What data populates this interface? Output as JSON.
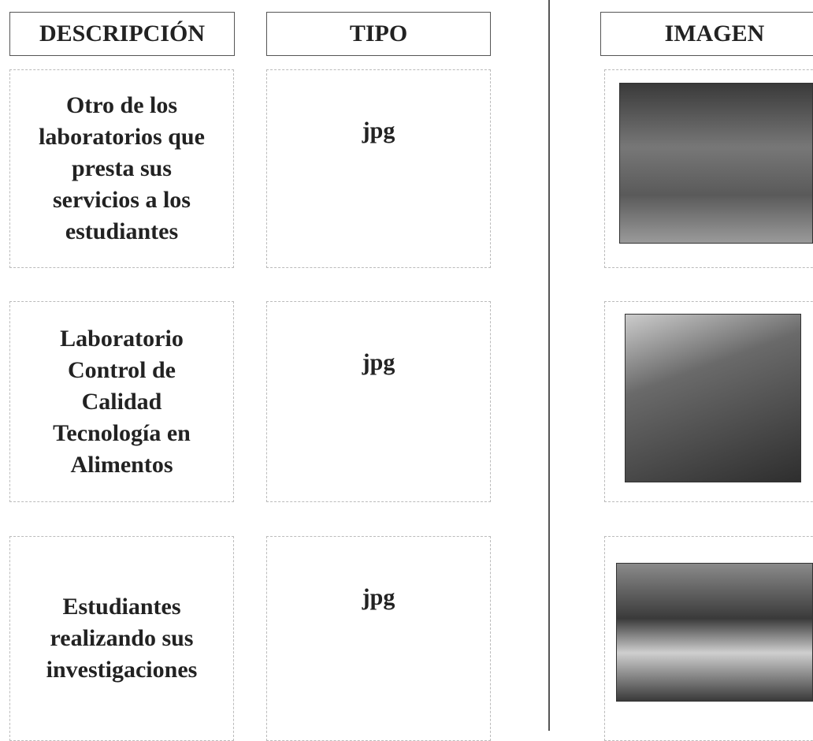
{
  "table": {
    "headers": [
      "DESCRIPCIÓN",
      "TIPO",
      "IMAGEN"
    ],
    "rows": [
      {
        "description": [
          "Otro de los",
          "laboratorios que",
          "presta sus",
          "servicios a los",
          "estudiantes"
        ],
        "type": "jpg"
      },
      {
        "description": [
          "Laboratorio",
          "Control de",
          "Calidad",
          "Tecnología en",
          "Alimentos"
        ],
        "type": "jpg"
      },
      {
        "description": [
          "Estudiantes",
          "realizando sus",
          "investigaciones"
        ],
        "type": "jpg"
      }
    ]
  }
}
